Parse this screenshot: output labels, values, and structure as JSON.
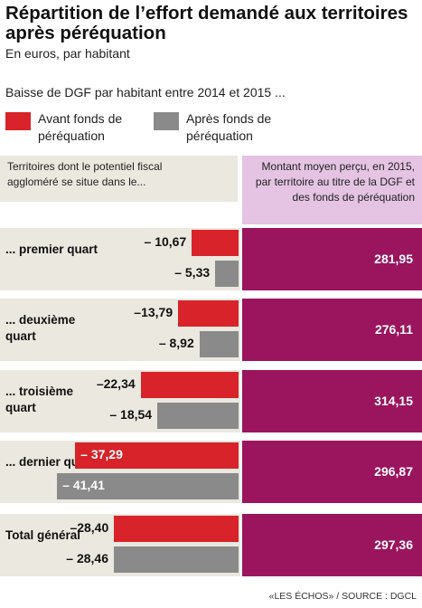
{
  "title": "Répartition de l’effort demandé aux territoires après péréquation",
  "subtitle": "En euros, par habitant",
  "description": "Baisse de DGF par habitant entre 2014 et 2015 ...",
  "legend": {
    "before": "Avant fonds de péréquation",
    "after": "Après fonds de péréquation"
  },
  "header_left": "Territoires dont le potentiel fiscal aggloméré se situe dans le...",
  "header_right": "Montant moyen perçu, en 2015, par territoire au titre de la DGF et des fonds de péréquation",
  "source": "«LES ÉCHOS» / SOURCE : DGCL",
  "colors": {
    "before": "#d8232a",
    "after": "#8a8a8a",
    "amount": "#9b145e",
    "header_right": "#e4c3e3",
    "panel": "#ebe8e0"
  },
  "chart_data": {
    "type": "bar",
    "title": "Répartition de l’effort demandé aux territoires après péréquation",
    "subtitle": "En euros, par habitant",
    "categories": [
      "... premier quart",
      "... deuxième quart",
      "... troisième quart",
      "... dernier quart",
      "Total général"
    ],
    "series": [
      {
        "name": "Avant fonds de péréquation",
        "values": [
          -10.67,
          -13.79,
          -22.34,
          -37.29,
          -28.4
        ],
        "labels": [
          "– 10,67",
          "–13,79",
          "–22,34",
          "– 37,29",
          "–28,40"
        ]
      },
      {
        "name": "Après fonds de péréquation",
        "values": [
          -5.33,
          -8.92,
          -18.54,
          -41.41,
          -28.46
        ],
        "labels": [
          "– 5,33",
          "– 8,92",
          "– 18,54",
          "– 41,41",
          "– 28,46"
        ]
      },
      {
        "name": "Montant moyen perçu, en 2015, par territoire au titre de la DGF et des fonds de péréquation",
        "values": [
          281.95,
          276.11,
          314.15,
          296.87,
          297.36
        ],
        "labels": [
          "281,95",
          "276,11",
          "314,15",
          "296,87",
          "297,36"
        ]
      }
    ]
  }
}
